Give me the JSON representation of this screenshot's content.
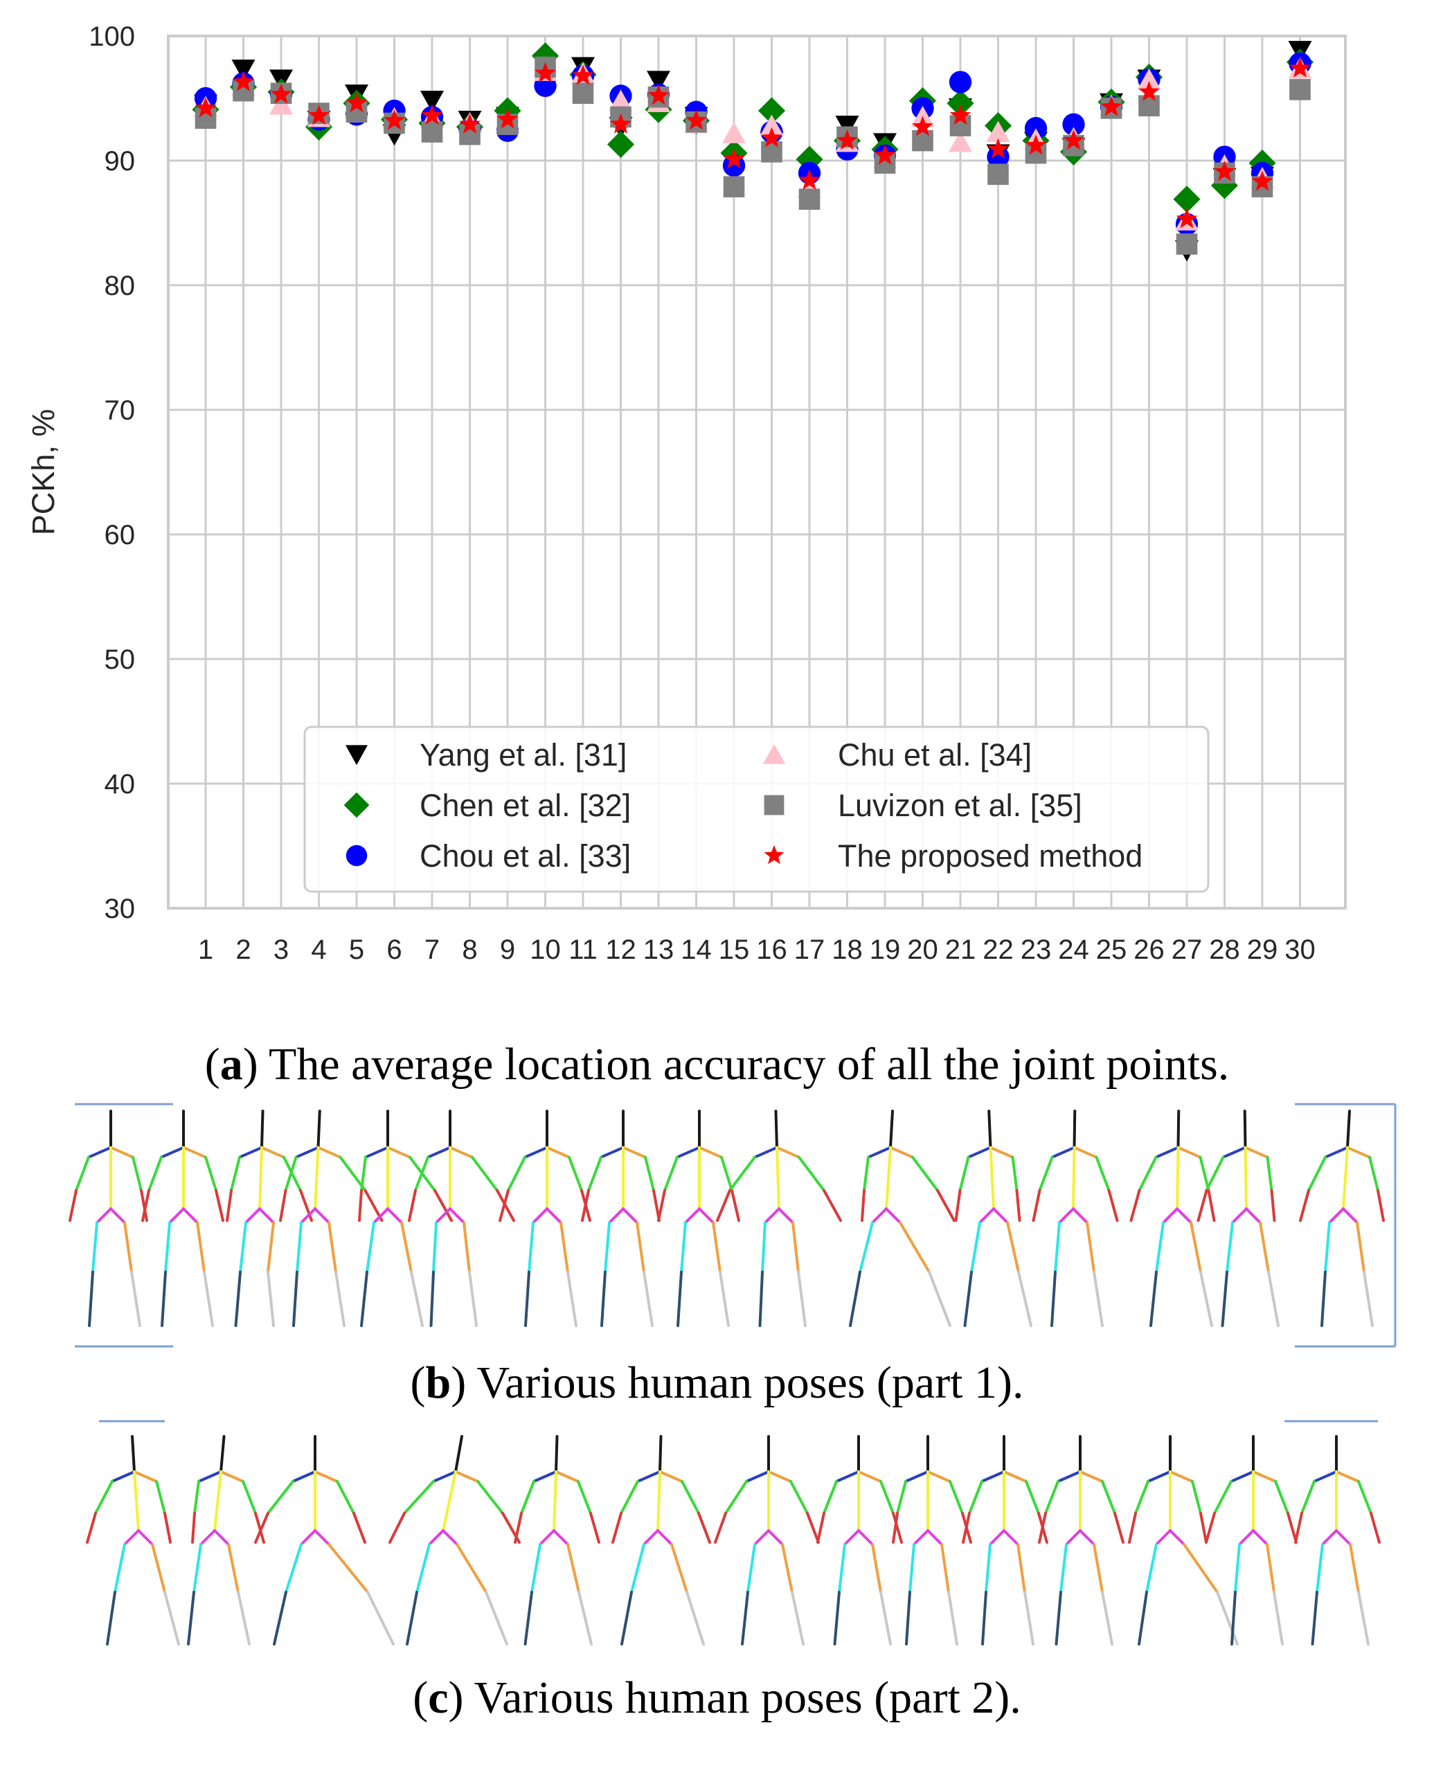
{
  "chart_data": {
    "type": "scatter",
    "title": "",
    "xlabel": "",
    "ylabel": "PCKh, %",
    "ylim": [
      30,
      100
    ],
    "yticks": [
      30,
      40,
      50,
      60,
      70,
      80,
      90,
      100
    ],
    "x": [
      1,
      2,
      3,
      4,
      5,
      6,
      7,
      8,
      9,
      10,
      11,
      12,
      13,
      14,
      15,
      16,
      17,
      18,
      19,
      20,
      21,
      22,
      23,
      24,
      25,
      26,
      27,
      28,
      29,
      30
    ],
    "grid": true,
    "legend_placement": "lower center",
    "series": [
      {
        "name": "Yang et al. [31]",
        "marker": "triangle-down",
        "color": "#000000",
        "values": [
          94.5,
          97.3,
          96.5,
          93.2,
          95.3,
          92.1,
          94.8,
          93.2,
          93.5,
          97.8,
          97.5,
          92.7,
          96.4,
          93.5,
          90.0,
          91.5,
          89.5,
          92.8,
          91.4,
          94.0,
          94.2,
          90.5,
          91.5,
          91.0,
          94.6,
          96.5,
          82.8,
          88.6,
          88.7,
          98.8
        ]
      },
      {
        "name": "Chen et al. [32]",
        "marker": "diamond",
        "color": "#008000",
        "values": [
          94.1,
          95.9,
          95.5,
          92.7,
          94.6,
          93.3,
          93.0,
          92.7,
          94.0,
          98.4,
          96.9,
          91.3,
          94.1,
          93.2,
          90.6,
          94.0,
          90.1,
          91.6,
          90.9,
          94.8,
          94.6,
          92.8,
          91.6,
          90.7,
          94.7,
          96.7,
          86.9,
          88.0,
          89.8,
          97.9
        ]
      },
      {
        "name": "Chou et al. [33]",
        "marker": "circle",
        "color": "#0000ff",
        "values": [
          95.0,
          96.2,
          95.3,
          93.3,
          93.7,
          94.0,
          93.5,
          92.5,
          92.4,
          96.0,
          96.8,
          95.2,
          95.3,
          93.9,
          89.6,
          92.3,
          89.0,
          90.9,
          90.4,
          94.2,
          96.3,
          90.3,
          92.6,
          92.9,
          94.3,
          96.5,
          84.9,
          90.3,
          89.0,
          97.8
        ]
      },
      {
        "name": "Chu et al. [34]",
        "marker": "triangle-up",
        "color": "#ffc0cb",
        "values": [
          94.3,
          96.0,
          94.5,
          93.5,
          94.3,
          93.4,
          93.4,
          93.0,
          93.1,
          97.2,
          97.0,
          94.8,
          94.7,
          93.0,
          92.2,
          92.8,
          87.8,
          91.5,
          90.2,
          93.5,
          91.5,
          92.3,
          91.7,
          91.8,
          94.4,
          96.5,
          85.2,
          89.6,
          88.6,
          97.4
        ]
      },
      {
        "name": "Luvizon et al. [35]",
        "marker": "square",
        "color": "#808080",
        "values": [
          93.4,
          95.6,
          95.4,
          93.8,
          93.9,
          93.0,
          92.3,
          92.1,
          92.9,
          97.5,
          95.4,
          93.5,
          95.1,
          93.1,
          87.9,
          90.7,
          86.9,
          91.9,
          89.8,
          91.6,
          92.8,
          88.9,
          90.6,
          91.2,
          94.2,
          94.4,
          83.3,
          89.0,
          87.9,
          95.7
        ]
      },
      {
        "name": "The proposed method",
        "marker": "star",
        "color": "#ff0000",
        "values": [
          94.2,
          96.3,
          95.3,
          93.6,
          94.6,
          93.2,
          93.6,
          92.9,
          93.3,
          97.0,
          96.8,
          92.9,
          95.2,
          93.2,
          90.1,
          91.8,
          88.4,
          91.6,
          90.4,
          92.7,
          93.6,
          90.9,
          91.2,
          91.6,
          94.3,
          95.5,
          85.3,
          89.1,
          88.3,
          97.4
        ]
      }
    ]
  },
  "captions": {
    "a": {
      "label": "a",
      "text": ") The average location accuracy of all the joint points."
    },
    "b": {
      "label": "b",
      "text": ") Various human poses (part 1)."
    },
    "c": {
      "label": "c",
      "text": ") Various human poses (part 2)."
    }
  },
  "pose_colors": {
    "head": "#1a1a1a",
    "neck_shoulder": "#2a3fbf",
    "torso": "#f2f23a",
    "upper_arm": "#3bd93b",
    "forearm": "#d93b3b",
    "hip": "#e040e0",
    "thigh": "#2ee6e6",
    "shin": "#2f4f6f",
    "thigh_alt": "#f0a040",
    "shin_alt": "#c8c8c8"
  }
}
